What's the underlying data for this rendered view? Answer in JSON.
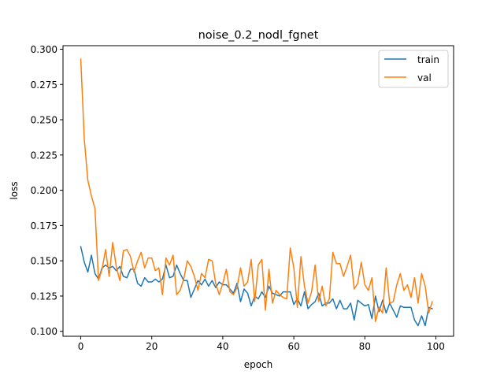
{
  "chart_data": {
    "type": "line",
    "title": "noise_0.2_nodl_fgnet",
    "xlabel": "epoch",
    "ylabel": "loss",
    "xlim": [
      -5,
      105
    ],
    "ylim": [
      0.0965,
      0.3025
    ],
    "x_ticks": [
      0,
      20,
      40,
      60,
      80,
      100
    ],
    "y_ticks": [
      0.1,
      0.125,
      0.15,
      0.175,
      0.2,
      0.225,
      0.25,
      0.275,
      0.3
    ],
    "y_tick_labels": [
      "0.100",
      "0.125",
      "0.150",
      "0.175",
      "0.200",
      "0.225",
      "0.250",
      "0.275",
      "0.300"
    ],
    "grid": false,
    "legend_position": "top-right",
    "x": [
      0,
      1,
      2,
      3,
      4,
      5,
      6,
      7,
      8,
      9,
      10,
      11,
      12,
      13,
      14,
      15,
      16,
      17,
      18,
      19,
      20,
      21,
      22,
      23,
      24,
      25,
      26,
      27,
      28,
      29,
      30,
      31,
      32,
      33,
      34,
      35,
      36,
      37,
      38,
      39,
      40,
      41,
      42,
      43,
      44,
      45,
      46,
      47,
      48,
      49,
      50,
      51,
      52,
      53,
      54,
      55,
      56,
      57,
      58,
      59,
      60,
      61,
      62,
      63,
      64,
      65,
      66,
      67,
      68,
      69,
      70,
      71,
      72,
      73,
      74,
      75,
      76,
      77,
      78,
      79,
      80,
      81,
      82,
      83,
      84,
      85,
      86,
      87,
      88,
      89,
      90,
      91,
      92,
      93,
      94,
      95,
      96,
      97,
      98,
      99
    ],
    "series": [
      {
        "name": "train",
        "color": "#1f77b4",
        "values": [
          0.16,
          0.149,
          0.142,
          0.154,
          0.141,
          0.137,
          0.145,
          0.147,
          0.145,
          0.146,
          0.143,
          0.146,
          0.139,
          0.138,
          0.144,
          0.144,
          0.134,
          0.132,
          0.138,
          0.135,
          0.135,
          0.137,
          0.135,
          0.137,
          0.147,
          0.138,
          0.139,
          0.147,
          0.141,
          0.136,
          0.136,
          0.124,
          0.13,
          0.136,
          0.133,
          0.137,
          0.132,
          0.136,
          0.131,
          0.135,
          0.133,
          0.133,
          0.13,
          0.127,
          0.134,
          0.121,
          0.13,
          0.127,
          0.118,
          0.125,
          0.123,
          0.128,
          0.124,
          0.132,
          0.127,
          0.126,
          0.125,
          0.128,
          0.128,
          0.128,
          0.119,
          0.123,
          0.118,
          0.128,
          0.116,
          0.119,
          0.121,
          0.127,
          0.118,
          0.12,
          0.12,
          0.123,
          0.116,
          0.122,
          0.116,
          0.116,
          0.12,
          0.108,
          0.122,
          0.12,
          0.118,
          0.119,
          0.109,
          0.125,
          0.114,
          0.122,
          0.113,
          0.12,
          0.115,
          0.11,
          0.118,
          0.117,
          0.117,
          0.117,
          0.108,
          0.104,
          0.111,
          0.104,
          0.117,
          0.116
        ]
      },
      {
        "name": "val",
        "color": "#ff7f0e",
        "values": [
          0.293,
          0.236,
          0.207,
          0.196,
          0.187,
          0.136,
          0.144,
          0.158,
          0.139,
          0.163,
          0.146,
          0.136,
          0.157,
          0.158,
          0.153,
          0.142,
          0.15,
          0.156,
          0.145,
          0.152,
          0.152,
          0.143,
          0.145,
          0.126,
          0.152,
          0.147,
          0.154,
          0.126,
          0.129,
          0.137,
          0.15,
          0.146,
          0.139,
          0.129,
          0.141,
          0.138,
          0.151,
          0.15,
          0.134,
          0.126,
          0.134,
          0.144,
          0.128,
          0.126,
          0.131,
          0.145,
          0.132,
          0.135,
          0.151,
          0.121,
          0.147,
          0.151,
          0.115,
          0.144,
          0.12,
          0.129,
          0.126,
          0.124,
          0.123,
          0.159,
          0.145,
          0.117,
          0.153,
          0.132,
          0.12,
          0.128,
          0.147,
          0.121,
          0.132,
          0.118,
          0.123,
          0.156,
          0.148,
          0.148,
          0.139,
          0.146,
          0.154,
          0.13,
          0.134,
          0.149,
          0.133,
          0.129,
          0.138,
          0.107,
          0.117,
          0.113,
          0.145,
          0.12,
          0.121,
          0.133,
          0.141,
          0.129,
          0.133,
          0.124,
          0.138,
          0.12,
          0.141,
          0.132,
          0.113,
          0.121
        ]
      }
    ]
  }
}
